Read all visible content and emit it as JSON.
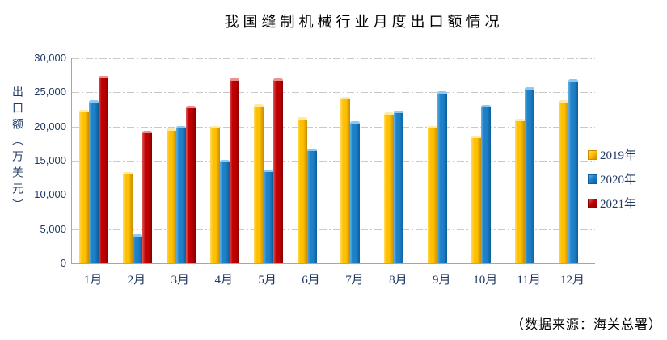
{
  "title": "我国缝制机械行业月度出口额情况",
  "source_note": "（数据来源：海关总署）",
  "colors": {
    "axis_line": "#A6A6A6",
    "gridline": "#C9C9C9",
    "tick_text": "#1F3864",
    "title_text": "#000000",
    "series_2019": "#FFC000",
    "series_2020": "#1E81C8",
    "series_2021": "#C00000"
  },
  "chart_data": {
    "type": "bar",
    "title": "我国缝制机械行业月度出口额情况",
    "ylabel": "出口额（万美元）",
    "xlabel": "",
    "ylim": [
      0,
      30000
    ],
    "ytick_step": 5000,
    "ytick_labels": [
      "30,000",
      "25,000",
      "20,000",
      "15,000",
      "10,000",
      "5,000",
      "0"
    ],
    "grid": "horizontal dash-dot",
    "legend_position": "right",
    "categories": [
      "1月",
      "2月",
      "3月",
      "4月",
      "5月",
      "6月",
      "7月",
      "8月",
      "9月",
      "10月",
      "11月",
      "12月"
    ],
    "series": [
      {
        "name": "2019年",
        "colors": {
          "main": "#FFC000",
          "light": "#FFD964",
          "dark": "#C98E00",
          "cap": "#FFE9A6"
        },
        "values": [
          22400,
          13300,
          19700,
          20100,
          23300,
          21400,
          24300,
          22100,
          20100,
          18700,
          21100,
          23900
        ]
      },
      {
        "name": "2020年",
        "colors": {
          "main": "#1E81C8",
          "light": "#63AEE2",
          "dark": "#0C5E9E",
          "cap": "#8FC8EE"
        },
        "values": [
          23800,
          4300,
          20100,
          15100,
          13700,
          16800,
          20800,
          22300,
          25100,
          23200,
          25700,
          26900
        ]
      },
      {
        "name": "2021年",
        "colors": {
          "main": "#C00000",
          "light": "#DE5A5A",
          "dark": "#870000",
          "cap": "#EA9191"
        },
        "values": [
          27400,
          19400,
          23000,
          27000,
          27000,
          null,
          null,
          null,
          null,
          null,
          null,
          null
        ]
      }
    ]
  }
}
